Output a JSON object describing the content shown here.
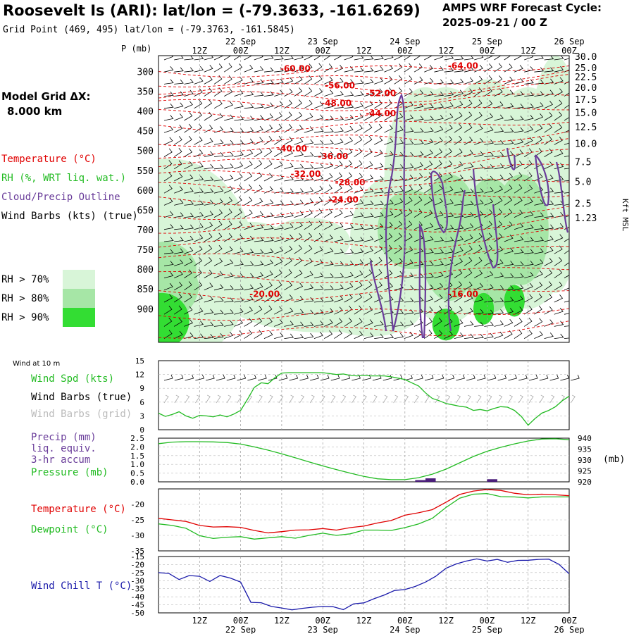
{
  "header": {
    "title": "Roosevelt Is (ARI):  lat/lon = (-79.3633, -161.6269)",
    "subtitle": "Grid Point (469, 495) lat/lon = (-79.3763, -161.5845)",
    "cycle_line1": "AMPS WRF Forecast Cycle:",
    "cycle_line2": "2025-09-21 / 00  Z",
    "model_grid_line1": "Model Grid ΔX:",
    "model_grid_line2": "8.000 km"
  },
  "colors": {
    "temperature": "#e00000",
    "rh": "#22bb22",
    "cloud": "#6a3d9a",
    "wind": "#000000",
    "grid_wind": "#aaaaaa",
    "pressure": "#22bb22",
    "precip": "#4b1e7a",
    "dewpoint": "#22bb22",
    "windchill": "#1a1aaa",
    "rh70": "#d8f5d8",
    "rh80": "#a6e6a6",
    "rh90": "#33dd33"
  },
  "top_panel": {
    "p_label": "P (mb)",
    "kft_label": "Kft MSL",
    "legend": {
      "temperature": "Temperature (°C)",
      "rh": "RH (%, WRT liq. wat.)",
      "cloud": "Cloud/Precip Outline",
      "wind": "Wind Barbs (kts) (true)",
      "rh70": "RH > 70%",
      "rh80": "RH > 80%",
      "rh90": "RH > 90%"
    }
  },
  "wind10_panel": {
    "label": "Wind at 10 m",
    "legend_spd": "Wind Spd (kts)",
    "legend_barbs_true": "Wind Barbs (true)",
    "legend_barbs_grid": "Wind Barbs (grid)"
  },
  "precip_panel": {
    "legend_precip_1": "Precip (mm)",
    "legend_precip_2": "liq. equiv.",
    "legend_precip_3": "3-hr accum",
    "legend_pressure": "Pressure (mb)",
    "mb_label": "(mb)"
  },
  "temp_panel": {
    "legend_temp": "Temperature (°C)",
    "legend_dew": "Dewpoint (°C)"
  },
  "chill_panel": {
    "legend": "Wind Chill T (°C)"
  },
  "chart_data": [
    {
      "type": "heatmap",
      "title": "Time-height cross section",
      "x_hours": [
        0,
        120
      ],
      "time_ticks": [
        {
          "hour": 12,
          "label": "12Z"
        },
        {
          "hour": 24,
          "label": "00Z",
          "date": "22 Sep"
        },
        {
          "hour": 36,
          "label": "12Z"
        },
        {
          "hour": 48,
          "label": "00Z",
          "date": "23 Sep"
        },
        {
          "hour": 60,
          "label": "12Z"
        },
        {
          "hour": 72,
          "label": "00Z",
          "date": "24 Sep"
        },
        {
          "hour": 84,
          "label": "12Z"
        },
        {
          "hour": 96,
          "label": "00Z",
          "date": "25 Sep"
        },
        {
          "hour": 108,
          "label": "12Z"
        },
        {
          "hour": 120,
          "label": "00Z",
          "date": "26 Sep"
        }
      ],
      "ylabel": "P (mb)",
      "ylim": [
        260,
        985
      ],
      "pressure_ticks": [
        "300",
        "350",
        "400",
        "450",
        "500",
        "550",
        "600",
        "650",
        "700",
        "750",
        "800",
        "850",
        "900"
      ],
      "height_ticks": [
        {
          "p": 262,
          "label": "30.0"
        },
        {
          "p": 290,
          "label": "25.0"
        },
        {
          "p": 313,
          "label": "22.5"
        },
        {
          "p": 340,
          "label": "20.0"
        },
        {
          "p": 370,
          "label": "17.5"
        },
        {
          "p": 403,
          "label": "15.0"
        },
        {
          "p": 440,
          "label": "12.5"
        },
        {
          "p": 482,
          "label": "10.0"
        },
        {
          "p": 528,
          "label": "7.5"
        },
        {
          "p": 578,
          "label": "5.0"
        },
        {
          "p": 633,
          "label": "2.5"
        },
        {
          "p": 670,
          "label": "1.23"
        }
      ],
      "temperature_labels": [
        {
          "hour": 40,
          "p": 300,
          "label": "-60.00"
        },
        {
          "hour": 89,
          "p": 293,
          "label": "-64.00"
        },
        {
          "hour": 53,
          "p": 343,
          "label": "-56.00"
        },
        {
          "hour": 65,
          "p": 362,
          "label": "-52.00"
        },
        {
          "hour": 52,
          "p": 387,
          "label": "-48.00"
        },
        {
          "hour": 65,
          "p": 413,
          "label": "-44.00"
        },
        {
          "hour": 39,
          "p": 502,
          "label": "-40.00"
        },
        {
          "hour": 51,
          "p": 522,
          "label": "-36.00"
        },
        {
          "hour": 43,
          "p": 566,
          "label": "-32.00"
        },
        {
          "hour": 56,
          "p": 588,
          "label": "-28.00"
        },
        {
          "hour": 54,
          "p": 631,
          "label": "-24.00"
        },
        {
          "hour": 31,
          "p": 870,
          "label": "-20.00"
        },
        {
          "hour": 89,
          "p": 870,
          "label": "-16.00"
        }
      ]
    },
    {
      "type": "line",
      "title": "Wind at 10 m",
      "ylabel": "Wind Spd (kts)",
      "ylim": [
        0,
        15
      ],
      "yticks": [
        "0",
        "3",
        "6",
        "9",
        "12",
        "15"
      ],
      "series": [
        {
          "name": "Wind Spd (kts)",
          "x": [
            0,
            2,
            4,
            6,
            8,
            10,
            12,
            14,
            16,
            18,
            20,
            22,
            24,
            26,
            28,
            30,
            32,
            34,
            36,
            38,
            40,
            42,
            44,
            46,
            48,
            50,
            52,
            54,
            56,
            58,
            60,
            62,
            64,
            66,
            68,
            70,
            72,
            74,
            76,
            78,
            80,
            82,
            84,
            86,
            88,
            90,
            92,
            94,
            96,
            98,
            100,
            102,
            104,
            106,
            108,
            110,
            112,
            114,
            116,
            118,
            120
          ],
          "values": [
            3.6,
            2.9,
            3.3,
            3.9,
            3.0,
            2.5,
            3.1,
            3.0,
            2.8,
            3.2,
            2.8,
            3.4,
            4.2,
            6.6,
            9.2,
            10.2,
            10.0,
            11.3,
            12.3,
            12.4,
            12.4,
            12.4,
            12.4,
            12.4,
            12.4,
            12.2,
            12.0,
            12.1,
            11.8,
            11.7,
            11.8,
            11.7,
            11.7,
            11.7,
            11.5,
            11.2,
            10.9,
            10.2,
            9.5,
            8.0,
            6.8,
            6.3,
            5.7,
            5.4,
            5.1,
            4.9,
            4.2,
            4.4,
            4.1,
            4.6,
            5.0,
            4.9,
            4.2,
            2.9,
            1.0,
            2.4,
            3.6,
            4.2,
            5.0,
            6.3,
            7.3
          ]
        }
      ]
    },
    {
      "type": "bar",
      "title": "Precip / Pressure",
      "ylabel": "Precip (mm)",
      "ylim": [
        0,
        2.5
      ],
      "yticks": [
        "0.0",
        "0.5",
        "1.0",
        "1.5",
        "2.0",
        "2.5"
      ],
      "precip_bars": [
        {
          "hour": 76.5,
          "value": 0.1
        },
        {
          "hour": 79.5,
          "value": 0.2
        },
        {
          "hour": 97.5,
          "value": 0.15
        }
      ],
      "pressure_ylim": [
        920,
        940
      ],
      "pressure_yticks": [
        "920",
        "925",
        "930",
        "935",
        "940"
      ],
      "series": [
        {
          "name": "Pressure (mb)",
          "x": [
            0,
            4,
            8,
            12,
            16,
            20,
            24,
            28,
            32,
            36,
            40,
            44,
            48,
            52,
            56,
            60,
            64,
            68,
            72,
            76,
            80,
            84,
            88,
            92,
            96,
            100,
            104,
            108,
            112,
            116,
            120
          ],
          "values": [
            937.5,
            938.2,
            938.4,
            938.4,
            938.3,
            938.0,
            937.3,
            936.0,
            934.5,
            932.8,
            931.0,
            929.1,
            927.3,
            925.6,
            924.0,
            922.5,
            921.4,
            921.0,
            921.0,
            921.9,
            923.5,
            925.8,
            928.7,
            931.6,
            934.0,
            935.8,
            937.4,
            938.7,
            939.6,
            939.7,
            939.3
          ]
        }
      ]
    },
    {
      "type": "line",
      "title": "Temperature / Dewpoint",
      "ylim": [
        -35,
        -15
      ],
      "yticks": [
        "-35",
        "-30",
        "-25",
        "-20"
      ],
      "series": [
        {
          "name": "Temperature (°C)",
          "x": [
            0,
            4,
            8,
            12,
            16,
            20,
            24,
            28,
            32,
            36,
            40,
            44,
            48,
            52,
            56,
            60,
            64,
            68,
            72,
            76,
            80,
            84,
            88,
            92,
            96,
            100,
            104,
            108,
            112,
            116,
            120
          ],
          "values": [
            -24.5,
            -25.0,
            -25.5,
            -26.8,
            -27.3,
            -27.2,
            -27.4,
            -28.4,
            -29.2,
            -28.8,
            -28.3,
            -28.2,
            -27.8,
            -28.3,
            -27.5,
            -27.0,
            -26.0,
            -25.2,
            -23.5,
            -22.7,
            -21.7,
            -19.3,
            -16.8,
            -15.7,
            -15.2,
            -15.5,
            -16.4,
            -16.9,
            -16.7,
            -16.9,
            -17.2
          ]
        },
        {
          "name": "Dewpoint (°C)",
          "x": [
            0,
            4,
            8,
            12,
            16,
            20,
            24,
            28,
            32,
            36,
            40,
            44,
            48,
            52,
            56,
            60,
            64,
            68,
            72,
            76,
            80,
            84,
            88,
            92,
            96,
            100,
            104,
            108,
            112,
            116,
            120
          ],
          "values": [
            -26.3,
            -26.8,
            -27.7,
            -30.1,
            -31.0,
            -30.6,
            -30.4,
            -31.2,
            -30.8,
            -30.4,
            -30.9,
            -30.0,
            -29.3,
            -30.0,
            -29.5,
            -28.3,
            -28.3,
            -28.4,
            -27.5,
            -26.3,
            -24.5,
            -21.0,
            -18.0,
            -16.7,
            -16.5,
            -17.5,
            -17.6,
            -17.9,
            -17.6,
            -17.6,
            -17.6
          ]
        }
      ]
    },
    {
      "type": "line",
      "title": "Wind Chill",
      "ylim": [
        -50,
        -15
      ],
      "yticks": [
        "-50",
        "-45",
        "-40",
        "-35",
        "-30",
        "-25",
        "-20",
        "-15"
      ],
      "series": [
        {
          "name": "Wind Chill T (°C)",
          "x": [
            0,
            3,
            6,
            9,
            12,
            15,
            18,
            21,
            24,
            27,
            30,
            33,
            36,
            39,
            42,
            45,
            48,
            51,
            54,
            57,
            60,
            63,
            66,
            69,
            72,
            75,
            78,
            81,
            84,
            87,
            90,
            93,
            96,
            99,
            102,
            105,
            108,
            111,
            114,
            117,
            120
          ],
          "values": [
            -25.0,
            -25.5,
            -29.3,
            -26.8,
            -27.3,
            -30.5,
            -26.8,
            -28.4,
            -30.9,
            -43.5,
            -43.7,
            -46.0,
            -47.0,
            -48.1,
            -47.2,
            -46.5,
            -46.0,
            -46.2,
            -48.0,
            -44.4,
            -43.8,
            -41.2,
            -38.9,
            -36.1,
            -35.5,
            -33.6,
            -30.9,
            -27.3,
            -22.3,
            -19.6,
            -17.8,
            -16.5,
            -17.8,
            -16.8,
            -18.6,
            -17.4,
            -17.3,
            -16.8,
            -16.6,
            -19.8,
            -25.7
          ]
        }
      ]
    }
  ]
}
